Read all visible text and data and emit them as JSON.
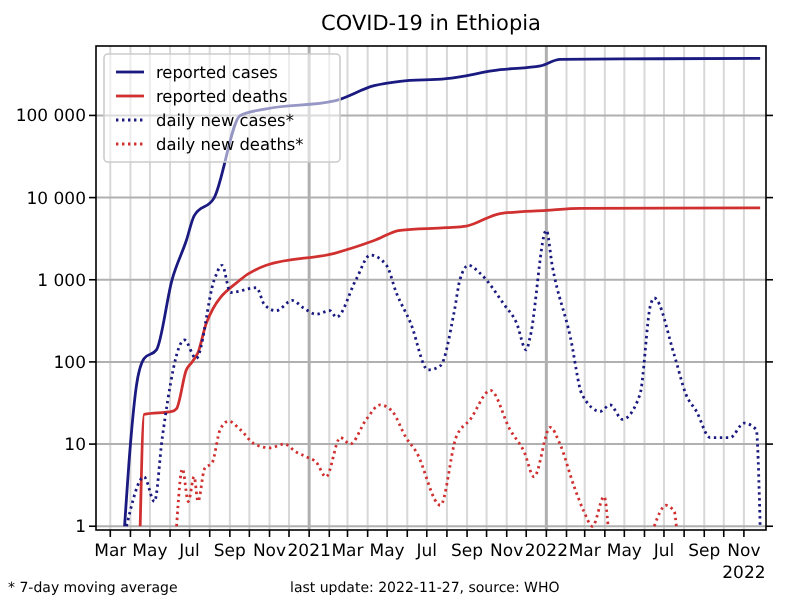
{
  "chart_data": {
    "type": "line",
    "title": "COVID-19 in Ethiopia",
    "log": true,
    "grid": true,
    "legend": "top left",
    "xlim": [
      "2020-02-08",
      "2022-12-05"
    ],
    "ylim": [
      0.9,
      700000
    ],
    "yticks": [
      1,
      10,
      {
        "value": 100,
        "label": "100"
      },
      {
        "value": 1000,
        "label": "1 000"
      },
      {
        "value": 10000,
        "label": "10 000"
      },
      {
        "value": 100000,
        "label": "100 000"
      }
    ],
    "xticks": [
      {
        "value": "2020-03-01",
        "label": "Mar"
      },
      {
        "value": "2020-04-01",
        "label": null
      },
      {
        "value": "2020-05-01",
        "label": "May"
      },
      {
        "value": "2020-06-01",
        "label": null
      },
      {
        "value": "2020-07-01",
        "label": "Jul"
      },
      {
        "value": "2020-08-01",
        "label": null
      },
      {
        "value": "2020-09-01",
        "label": "Sep"
      },
      {
        "value": "2020-10-01",
        "label": null
      },
      {
        "value": "2020-11-01",
        "label": "Nov"
      },
      {
        "value": "2020-12-01",
        "label": null
      },
      {
        "value": "2021-01-01",
        "label": "2021"
      },
      {
        "value": "2021-02-01",
        "label": null
      },
      {
        "value": "2021-03-01",
        "label": "Mar"
      },
      {
        "value": "2021-04-01",
        "label": null
      },
      {
        "value": "2021-05-01",
        "label": "May"
      },
      {
        "value": "2021-06-01",
        "label": null
      },
      {
        "value": "2021-07-01",
        "label": "Jul"
      },
      {
        "value": "2021-08-01",
        "label": null
      },
      {
        "value": "2021-09-01",
        "label": "Sep"
      },
      {
        "value": "2021-10-01",
        "label": null
      },
      {
        "value": "2021-11-01",
        "label": "Nov"
      },
      {
        "value": "2021-12-01",
        "label": null
      },
      {
        "value": "2022-01-01",
        "label": "2022"
      },
      {
        "value": "2022-02-01",
        "label": null
      },
      {
        "value": "2022-03-01",
        "label": "Mar"
      },
      {
        "value": "2022-04-01",
        "label": null
      },
      {
        "value": "2022-05-01",
        "label": "May"
      },
      {
        "value": "2022-06-01",
        "label": null
      },
      {
        "value": "2022-07-01",
        "label": "Jul"
      },
      {
        "value": "2022-08-01",
        "label": null
      },
      {
        "value": "2022-09-01",
        "label": "Sep"
      },
      {
        "value": "2022-10-01",
        "label": null
      },
      {
        "value": "2022-11-01",
        "label": "Nov\n2022"
      }
    ],
    "annotations": [
      "* 7-day moving average",
      "last update: 2022-11-27, source: WHO"
    ],
    "series": [
      {
        "name": "reported cases",
        "color": "#1a1a80",
        "line_style": "solid",
        "x": [
          "2020-03-23",
          "2020-04-01",
          "2020-04-10",
          "2020-04-22",
          "2020-05-11",
          "2020-06-04",
          "2020-06-26",
          "2020-07-08",
          "2020-08-08",
          "2020-09-17",
          "2020-10-27",
          "2021-02-09",
          "2021-04-11",
          "2021-05-21",
          "2021-07-31",
          "2021-10-22",
          "2021-12-23",
          "2022-01-22",
          "2022-06-25",
          "2022-11-26"
        ],
        "values": [
          1,
          10,
          50,
          110,
          140,
          1000,
          3000,
          6000,
          10000,
          100000,
          120000,
          150000,
          230000,
          260000,
          280000,
          360000,
          400000,
          480000,
          490000,
          495000
        ]
      },
      {
        "name": "reported deaths",
        "color": "#d03030",
        "line_style": "solid",
        "x": [
          "2020-04-16",
          "2020-04-22",
          "2020-06-04",
          "2020-06-11",
          "2020-06-26",
          "2020-07-05",
          "2020-07-14",
          "2020-07-27",
          "2020-09-17",
          "2020-10-27",
          "2021-02-09",
          "2021-04-11",
          "2021-05-21",
          "2021-07-31",
          "2021-08-31",
          "2021-10-22",
          "2022-01-01",
          "2022-02-22",
          "2022-11-26"
        ],
        "values": [
          1,
          23,
          25,
          27,
          80,
          100,
          130,
          300,
          1000,
          1500,
          2100,
          3000,
          4000,
          4300,
          4500,
          6400,
          7000,
          7400,
          7500
        ]
      },
      {
        "name": "daily new cases*",
        "color": "#1a1a80",
        "line_style": "dotted",
        "x": [
          "2020-03-26",
          "2020-04-22",
          "2020-05-08",
          "2020-05-20",
          "2020-06-23",
          "2020-07-11",
          "2020-08-08",
          "2020-08-20",
          "2020-09-02",
          "2020-10-12",
          "2020-10-24",
          "2020-11-11",
          "2020-12-06",
          "2020-12-24",
          "2021-01-12",
          "2021-02-02",
          "2021-02-12",
          "2021-03-14",
          "2021-04-05",
          "2021-04-30",
          "2021-05-15",
          "2021-06-06",
          "2021-07-03",
          "2021-07-22",
          "2021-08-12",
          "2021-08-21",
          "2021-09-03",
          "2021-09-21",
          "2021-10-28",
          "2021-11-16",
          "2021-12-01",
          "2021-12-07",
          "2022-01-01",
          "2022-01-10",
          "2022-02-07",
          "2022-02-25",
          "2022-03-25",
          "2022-04-09",
          "2022-04-28",
          "2022-05-25",
          "2022-06-10",
          "2022-06-16",
          "2022-07-17",
          "2022-08-04",
          "2022-08-20",
          "2022-09-10",
          "2022-10-11",
          "2022-11-01",
          "2022-11-20",
          "2022-11-26"
        ],
        "values": [
          1,
          4,
          2,
          12,
          185,
          110,
          1000,
          1500,
          700,
          800,
          500,
          420,
          560,
          450,
          380,
          420,
          350,
          1000,
          2000,
          1500,
          700,
          300,
          80,
          90,
          400,
          1000,
          1500,
          1200,
          500,
          300,
          140,
          200,
          4000,
          1500,
          200,
          40,
          25,
          30,
          20,
          40,
          480,
          600,
          120,
          40,
          25,
          12,
          12,
          18,
          15,
          1
        ]
      },
      {
        "name": "daily new deaths*",
        "color": "#d03030",
        "line_style": "dotted",
        "x": [
          "2020-06-11",
          "2020-06-20",
          "2020-06-29",
          "2020-07-08",
          "2020-07-14",
          "2020-07-24",
          "2020-08-05",
          "2020-08-17",
          "2020-08-30",
          "2020-09-17",
          "2020-10-09",
          "2020-11-02",
          "2020-11-24",
          "2020-12-12",
          "2020-12-28",
          "2021-01-12",
          "2021-01-27",
          "2021-02-18",
          "2021-03-05",
          "2021-03-30",
          "2021-04-20",
          "2021-05-09",
          "2021-05-30",
          "2021-06-15",
          "2021-07-22",
          "2021-08-15",
          "2021-09-06",
          "2021-10-07",
          "2021-11-06",
          "2021-11-28",
          "2021-12-13",
          "2022-01-07",
          "2022-01-22",
          "2022-02-13",
          "2022-02-28",
          "2022-03-13",
          "2022-03-31",
          "2022-04-06",
          "2022-05-01",
          "2022-06-16",
          "2022-07-04",
          "2022-07-17",
          "2022-07-20"
        ],
        "values": [
          1,
          5,
          2,
          4,
          2,
          5,
          6,
          15,
          19,
          15,
          10,
          9,
          10,
          8,
          7,
          6,
          4,
          12,
          10,
          20,
          30,
          25,
          12,
          8,
          1.8,
          12,
          20,
          45,
          15,
          8,
          4,
          16,
          10,
          3,
          1.5,
          1,
          2.3,
          1,
          null,
          1,
          1.8,
          1.5,
          1
        ]
      }
    ]
  }
}
